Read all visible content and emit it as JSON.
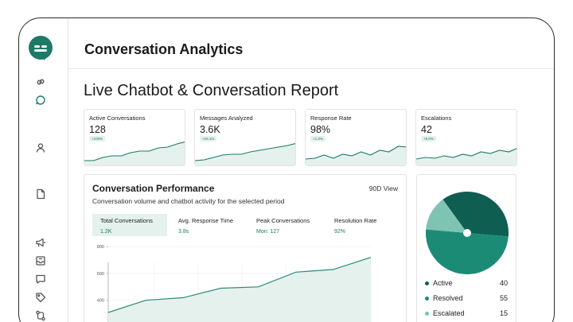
{
  "app": {
    "title": "Conversation Analytics"
  },
  "report": {
    "title": "Live Chatbot & Conversation Report"
  },
  "sidebar": {
    "icons": [
      "link-icon",
      "chat-bubble-icon",
      "user-icon",
      "document-icon",
      "megaphone-icon",
      "inbox-icon",
      "message-square-icon",
      "tag-icon",
      "workflow-icon"
    ],
    "active": "chat-bubble-icon"
  },
  "kpis": [
    {
      "label": "Active Conversations",
      "value": "128",
      "badge": "+100%",
      "trend": [
        6,
        6,
        10,
        12,
        12,
        16,
        18,
        18,
        22,
        23,
        27,
        30
      ]
    },
    {
      "label": "Messages Analyzed",
      "value": "3.6K",
      "badge": "+16.1%",
      "trend": [
        6,
        7,
        10,
        13,
        14,
        14,
        17,
        19,
        21,
        23,
        25,
        28
      ]
    },
    {
      "label": "Response Rate",
      "value": "98%",
      "badge": "+1.3%",
      "trend": [
        8,
        9,
        13,
        9,
        14,
        12,
        17,
        13,
        19,
        17,
        24,
        23
      ]
    },
    {
      "label": "Escalations",
      "value": "42",
      "badge": "+5.0%",
      "trend": [
        8,
        10,
        9,
        12,
        10,
        14,
        12,
        17,
        15,
        19,
        17,
        22
      ]
    }
  ],
  "performance": {
    "title": "Conversation Performance",
    "subtitle": "Conversation volume and chatbot activity for the selected period",
    "view": "90D View",
    "tabs": [
      {
        "label": "Total Conversations",
        "value": "1.2K"
      },
      {
        "label": "Avg. Response Time",
        "value": "3.8s"
      },
      {
        "label": "Peak Conversations",
        "value": "Mon: 127"
      },
      {
        "label": "Resolution Rate",
        "value": "92%"
      }
    ],
    "active_tab": 0
  },
  "chart_data": [
    {
      "type": "area",
      "x": [
        1,
        2,
        3,
        4,
        5,
        6,
        7,
        8
      ],
      "values": [
        310,
        400,
        420,
        490,
        500,
        610,
        630,
        720
      ],
      "yticks": [
        200,
        400,
        600,
        800
      ],
      "ylim": [
        150,
        860
      ]
    },
    {
      "type": "pie",
      "categories": [
        "Active",
        "Resolved",
        "Escalated"
      ],
      "values": [
        40,
        55,
        15
      ],
      "colors": [
        "#0e5e52",
        "#1c8b76",
        "#7fc3b3"
      ]
    }
  ],
  "colors": {
    "accent": "#1c7a66",
    "area_fill": "#e4f1ed"
  }
}
